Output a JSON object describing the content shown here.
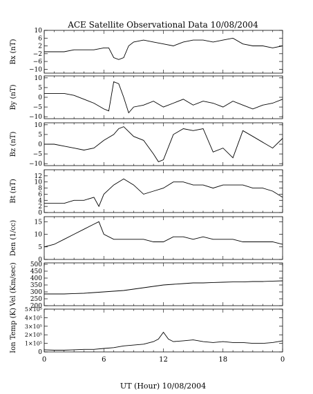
{
  "title": "ACE Satellite Observational Data   10/08/2004",
  "xlabel": "UT (Hour)   10/08/2004",
  "x_ticks": [
    "0",
    "6",
    "12",
    "18",
    "0"
  ],
  "chart_data": [
    {
      "type": "line",
      "ylabel": "Bx (nT)",
      "ylim": [
        -12,
        10
      ],
      "yticks": [
        -10,
        -6,
        -2,
        2,
        6,
        10
      ],
      "yticklabels": [
        "−10",
        "−6",
        "−2",
        "2",
        "6",
        "10"
      ],
      "x": [
        0,
        1,
        2,
        3,
        4,
        5,
        6,
        6.5,
        7,
        7.5,
        8,
        8.5,
        9,
        10,
        11,
        12,
        13,
        14,
        15,
        16,
        17,
        18,
        19,
        20,
        21,
        22,
        23,
        24
      ],
      "values": [
        -1,
        -1,
        -1,
        0,
        0,
        0,
        1,
        1,
        -4,
        -5,
        -4,
        2,
        4,
        5,
        4,
        3,
        2,
        4,
        5,
        5,
        4,
        5,
        6,
        3,
        2,
        2,
        1,
        2
      ]
    },
    {
      "type": "line",
      "ylabel": "By (nT)",
      "ylim": [
        -11,
        11
      ],
      "yticks": [
        -10,
        -5,
        0,
        5,
        10
      ],
      "yticklabels": [
        "−10",
        "−5",
        "0",
        "5",
        "10"
      ],
      "x": [
        0,
        1,
        2,
        3,
        4,
        5,
        6,
        6.5,
        7,
        7.5,
        8,
        8.5,
        9,
        10,
        11,
        12,
        13,
        14,
        15,
        16,
        17,
        18,
        19,
        20,
        21,
        22,
        23,
        24
      ],
      "values": [
        2,
        2,
        2,
        1,
        -1,
        -3,
        -6,
        -7,
        8,
        7,
        0,
        -8,
        -5,
        -4,
        -2,
        -5,
        -3,
        -1,
        -4,
        -2,
        -3,
        -5,
        -2,
        -4,
        -6,
        -4,
        -3,
        -1
      ]
    },
    {
      "type": "line",
      "ylabel": "Bz (nT)",
      "ylim": [
        -11,
        11
      ],
      "yticks": [
        -10,
        -5,
        0,
        5,
        10
      ],
      "yticklabels": [
        "−10",
        "−5",
        "0",
        "5",
        "10"
      ],
      "x": [
        0,
        1,
        2,
        3,
        4,
        5,
        6,
        7,
        7.5,
        8,
        9,
        10,
        11,
        11.5,
        12,
        13,
        14,
        15,
        16,
        17,
        18,
        19,
        20,
        21,
        22,
        23,
        24
      ],
      "values": [
        0,
        0,
        -1,
        -2,
        -3,
        -2,
        2,
        5,
        8,
        9,
        4,
        2,
        -5,
        -9,
        -8,
        5,
        8,
        7,
        8,
        -4,
        -2,
        -7,
        7,
        4,
        1,
        -2,
        3
      ]
    },
    {
      "type": "line",
      "ylabel": "Bt (nT)",
      "ylim": [
        0,
        14
      ],
      "yticks": [
        0,
        2,
        4,
        6,
        8,
        10,
        12
      ],
      "yticklabels": [
        "0",
        "2",
        "4",
        "6",
        "8",
        "10",
        "12"
      ],
      "x": [
        0,
        1,
        2,
        3,
        4,
        5,
        5.5,
        6,
        7,
        8,
        9,
        10,
        11,
        12,
        13,
        14,
        15,
        16,
        17,
        18,
        19,
        20,
        21,
        22,
        23,
        24
      ],
      "values": [
        3,
        3,
        3,
        4,
        4,
        5,
        2,
        6,
        9,
        11,
        9,
        6,
        7,
        8,
        10,
        10,
        9,
        9,
        8,
        9,
        9,
        9,
        8,
        8,
        7,
        5
      ]
    },
    {
      "type": "line",
      "ylabel": "Den (1/cc)",
      "ylim": [
        0,
        17
      ],
      "yticks": [
        0,
        5,
        10,
        15
      ],
      "yticklabels": [
        "0",
        "5",
        "10",
        "15"
      ],
      "x": [
        0,
        1,
        2,
        3,
        4,
        5,
        5.5,
        6,
        7,
        8,
        9,
        10,
        11,
        12,
        13,
        14,
        15,
        16,
        17,
        18,
        19,
        20,
        21,
        22,
        23,
        24
      ],
      "values": [
        5,
        6,
        8,
        10,
        12,
        14,
        15,
        10,
        8,
        8,
        8,
        8,
        7,
        7,
        9,
        9,
        8,
        9,
        8,
        8,
        8,
        7,
        7,
        7,
        7,
        6
      ]
    },
    {
      "type": "line",
      "ylabel": "Vel (Km/sec)",
      "ylim": [
        200,
        510
      ],
      "yticks": [
        200,
        250,
        300,
        350,
        400,
        450,
        500
      ],
      "yticklabels": [
        "200",
        "250",
        "300",
        "350",
        "400",
        "450",
        "500"
      ],
      "x": [
        0,
        1,
        2,
        3,
        4,
        5,
        6,
        7,
        8,
        9,
        10,
        11,
        12,
        13,
        14,
        15,
        16,
        17,
        18,
        19,
        20,
        21,
        22,
        23,
        24
      ],
      "values": [
        285,
        285,
        285,
        288,
        290,
        295,
        300,
        305,
        310,
        320,
        330,
        340,
        350,
        355,
        360,
        365,
        365,
        368,
        370,
        372,
        372,
        375,
        375,
        378,
        380
      ]
    },
    {
      "type": "line",
      "ylabel": "Ion Temp (K)",
      "ylim": [
        0,
        500000
      ],
      "yticks": [
        0,
        100000,
        200000,
        300000,
        400000,
        500000
      ],
      "yticklabels": [
        "0",
        "1×10⁵",
        "2×10⁵",
        "3×10⁵",
        "4×10⁵",
        "5×10⁵"
      ],
      "x": [
        0,
        1,
        2,
        3,
        4,
        5,
        6,
        7,
        8,
        9,
        10,
        11,
        11.5,
        12,
        12.5,
        13,
        14,
        15,
        16,
        17,
        18,
        19,
        20,
        21,
        22,
        23,
        24
      ],
      "values": [
        25000,
        20000,
        20000,
        25000,
        30000,
        30000,
        40000,
        50000,
        70000,
        80000,
        90000,
        120000,
        150000,
        230000,
        150000,
        120000,
        130000,
        140000,
        120000,
        110000,
        120000,
        110000,
        110000,
        100000,
        100000,
        110000,
        130000
      ]
    }
  ]
}
